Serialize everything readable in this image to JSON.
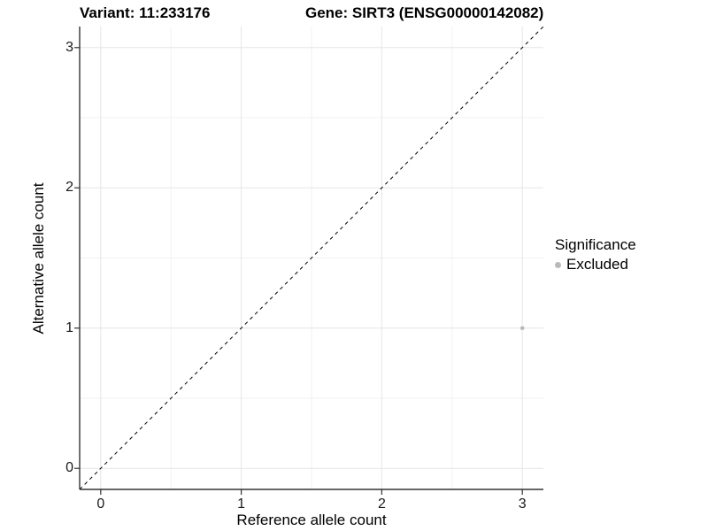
{
  "title": {
    "variant": "Variant: 11:233176",
    "gene": "Gene: SIRT3 (ENSG00000142082)"
  },
  "chart_data": {
    "type": "scatter",
    "title": "Variant: 11:233176   Gene: SIRT3 (ENSG00000142082)",
    "xlabel": "Reference allele count",
    "ylabel": "Alternative allele count",
    "xlim": [
      -0.15,
      3.15
    ],
    "ylim": [
      -0.15,
      3.15
    ],
    "x_ticks": [
      0,
      1,
      2,
      3
    ],
    "y_ticks": [
      0,
      1,
      2,
      3
    ],
    "minor_ticks": [
      0.5,
      1.5,
      2.5
    ],
    "grid": true,
    "reference_line": {
      "kind": "identity",
      "linetype": "dashed",
      "color": "#000000"
    },
    "series": [
      {
        "name": "Excluded",
        "color": "#b9b9b9",
        "points": [
          {
            "x": 3,
            "y": 1
          }
        ]
      }
    ],
    "legend": {
      "title": "Significance",
      "position": "right",
      "entries": [
        {
          "label": "Excluded",
          "color": "#b9b9b9"
        }
      ]
    },
    "colors": {
      "background": "#ffffff",
      "grid_major": "#e5e5e5",
      "grid_minor": "#f2f2f2",
      "axis_line": "#333333",
      "tick_mark": "#333333",
      "point": "#b9b9b9"
    }
  }
}
